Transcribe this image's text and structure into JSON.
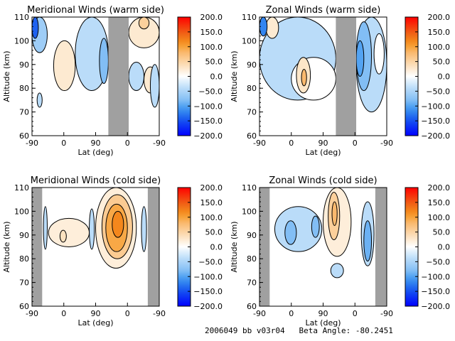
{
  "footer": "2006049 bb v03r04   Beta Angle: -80.2451",
  "chart_data": [
    {
      "type": "heatmap",
      "title": "Meridional Winds (warm side)",
      "xlabel": "Lat (deg)",
      "ylabel": "Altitude (km)",
      "xticks": [
        "-90",
        "0",
        "90",
        "0",
        "-90"
      ],
      "yticks": [
        60,
        70,
        80,
        90,
        100,
        110
      ],
      "ylim": [
        60,
        110
      ],
      "colorbar": {
        "ticks": [
          "200.0",
          "150.0",
          "100.0",
          "50.0",
          "0.0",
          "-50.0",
          "-100.0",
          "-150.0",
          "-200.0"
        ],
        "range": [
          -200,
          200
        ]
      },
      "gap_mask": [
        [
          0.6,
          0.76
        ]
      ],
      "blobs": [
        {
          "v": -60,
          "lat": [
            0.0,
            0.12
          ],
          "alt": [
            95,
            110
          ]
        },
        {
          "v": -140,
          "lat": [
            0.0,
            0.05
          ],
          "alt": [
            101,
            110
          ]
        },
        {
          "v": 25,
          "lat": [
            0.17,
            0.34
          ],
          "alt": [
            79,
            100
          ]
        },
        {
          "v": -40,
          "lat": [
            0.34,
            0.6
          ],
          "alt": [
            79,
            110
          ]
        },
        {
          "v": -80,
          "lat": [
            0.53,
            0.6
          ],
          "alt": [
            82,
            101
          ]
        },
        {
          "v": 25,
          "lat": [
            0.76,
            1.0
          ],
          "alt": [
            97,
            110
          ]
        },
        {
          "v": 55,
          "lat": [
            0.84,
            0.92
          ],
          "alt": [
            105,
            110
          ]
        },
        {
          "v": -40,
          "lat": [
            0.76,
            0.88
          ],
          "alt": [
            79,
            91
          ]
        },
        {
          "v": 25,
          "lat": [
            0.88,
            0.98
          ],
          "alt": [
            78,
            89
          ]
        },
        {
          "v": -40,
          "lat": [
            0.93,
            1.0
          ],
          "alt": [
            72,
            90
          ]
        },
        {
          "v": -40,
          "lat": [
            0.04,
            0.08
          ],
          "alt": [
            72,
            78
          ]
        }
      ]
    },
    {
      "type": "heatmap",
      "title": "Zonal Winds (warm side)",
      "xlabel": "Lat (deg)",
      "ylabel": "Altitude (km)",
      "xticks": [
        "-90",
        "0",
        "90",
        "0",
        "-90"
      ],
      "yticks": [
        60,
        70,
        80,
        90,
        100,
        110
      ],
      "ylim": [
        60,
        110
      ],
      "colorbar": {
        "ticks": [
          "200.0",
          "150.0",
          "100.0",
          "50.0",
          "0.0",
          "-50.0",
          "-100.0",
          "-150.0",
          "-200.0"
        ],
        "range": [
          -200,
          200
        ]
      },
      "gap_mask": [
        [
          0.6,
          0.76
        ]
      ],
      "blobs": [
        {
          "v": -40,
          "lat": [
            0.0,
            0.6
          ],
          "alt": [
            75,
            110
          ]
        },
        {
          "v": 25,
          "lat": [
            0.05,
            0.15
          ],
          "alt": [
            101,
            110
          ]
        },
        {
          "v": -120,
          "lat": [
            0.0,
            0.06
          ],
          "alt": [
            102,
            110
          ]
        },
        {
          "v": 0,
          "lat": [
            0.25,
            0.6
          ],
          "alt": [
            75,
            93
          ]
        },
        {
          "v": 30,
          "lat": [
            0.29,
            0.4
          ],
          "alt": [
            78,
            93
          ]
        },
        {
          "v": 80,
          "lat": [
            0.33,
            0.37
          ],
          "alt": [
            81,
            88
          ]
        },
        {
          "v": -40,
          "lat": [
            0.76,
            1.0
          ],
          "alt": [
            70,
            110
          ]
        },
        {
          "v": -80,
          "lat": [
            0.76,
            0.88
          ],
          "alt": [
            79,
            108
          ]
        },
        {
          "v": -100,
          "lat": [
            0.76,
            0.82
          ],
          "alt": [
            85,
            100
          ]
        },
        {
          "v": 0,
          "lat": [
            0.9,
            0.98
          ],
          "alt": [
            86,
            103
          ]
        }
      ]
    },
    {
      "type": "heatmap",
      "title": "Meridional Winds (cold side)",
      "xlabel": "Lat (deg)",
      "ylabel": "Altitude (km)",
      "xticks": [
        "-90",
        "0",
        "90",
        "0",
        "-90"
      ],
      "yticks": [
        60,
        70,
        80,
        90,
        100,
        110
      ],
      "ylim": [
        60,
        110
      ],
      "colorbar": {
        "ticks": [
          "200.0",
          "150.0",
          "100.0",
          "50.0",
          "0.0",
          "-50.0",
          "-100.0",
          "-150.0",
          "-200.0"
        ],
        "range": [
          -200,
          200
        ]
      },
      "gap_mask": [
        [
          0.0,
          0.08
        ],
        [
          0.91,
          1.0
        ]
      ],
      "blobs": [
        {
          "v": -40,
          "lat": [
            0.09,
            0.12
          ],
          "alt": [
            84,
            102
          ]
        },
        {
          "v": 20,
          "lat": [
            0.13,
            0.45
          ],
          "alt": [
            85,
            97
          ]
        },
        {
          "v": 35,
          "lat": [
            0.22,
            0.27
          ],
          "alt": [
            87,
            92
          ]
        },
        {
          "v": -40,
          "lat": [
            0.45,
            0.49
          ],
          "alt": [
            84,
            101
          ]
        },
        {
          "v": 20,
          "lat": [
            0.5,
            0.82
          ],
          "alt": [
            76,
            110
          ]
        },
        {
          "v": 60,
          "lat": [
            0.55,
            0.79
          ],
          "alt": [
            80,
            107
          ]
        },
        {
          "v": 95,
          "lat": [
            0.58,
            0.75
          ],
          "alt": [
            83,
            103
          ]
        },
        {
          "v": 120,
          "lat": [
            0.63,
            0.72
          ],
          "alt": [
            89,
            100
          ]
        },
        {
          "v": -40,
          "lat": [
            0.86,
            0.9
          ],
          "alt": [
            83,
            102
          ]
        }
      ]
    },
    {
      "type": "heatmap",
      "title": "Zonal Winds (cold side)",
      "xlabel": "Lat (deg)",
      "ylabel": "Altitude (km)",
      "xticks": [
        "-90",
        "0",
        "90",
        "0",
        "-90"
      ],
      "yticks": [
        60,
        70,
        80,
        90,
        100,
        110
      ],
      "ylim": [
        60,
        110
      ],
      "colorbar": {
        "ticks": [
          "200.0",
          "150.0",
          "100.0",
          "50.0",
          "0.0",
          "-50.0",
          "-100.0",
          "-150.0",
          "-200.0"
        ],
        "range": [
          -200,
          200
        ]
      },
      "gap_mask": [
        [
          0.0,
          0.08
        ],
        [
          0.91,
          1.0
        ]
      ],
      "blobs": [
        {
          "v": -40,
          "lat": [
            0.12,
            0.49
          ],
          "alt": [
            83,
            102
          ]
        },
        {
          "v": -80,
          "lat": [
            0.2,
            0.29
          ],
          "alt": [
            86,
            96
          ]
        },
        {
          "v": -80,
          "lat": [
            0.41,
            0.47
          ],
          "alt": [
            89,
            98
          ]
        },
        {
          "v": 20,
          "lat": [
            0.5,
            0.72
          ],
          "alt": [
            81,
            110
          ]
        },
        {
          "v": 55,
          "lat": [
            0.54,
            0.63
          ],
          "alt": [
            88,
            108
          ]
        },
        {
          "v": 80,
          "lat": [
            0.57,
            0.61
          ],
          "alt": [
            94,
            104
          ]
        },
        {
          "v": -40,
          "lat": [
            0.8,
            0.9
          ],
          "alt": [
            77,
            104
          ]
        },
        {
          "v": -90,
          "lat": [
            0.82,
            0.88
          ],
          "alt": [
            79,
            96
          ]
        },
        {
          "v": -40,
          "lat": [
            0.56,
            0.66
          ],
          "alt": [
            72,
            78
          ]
        }
      ]
    }
  ]
}
